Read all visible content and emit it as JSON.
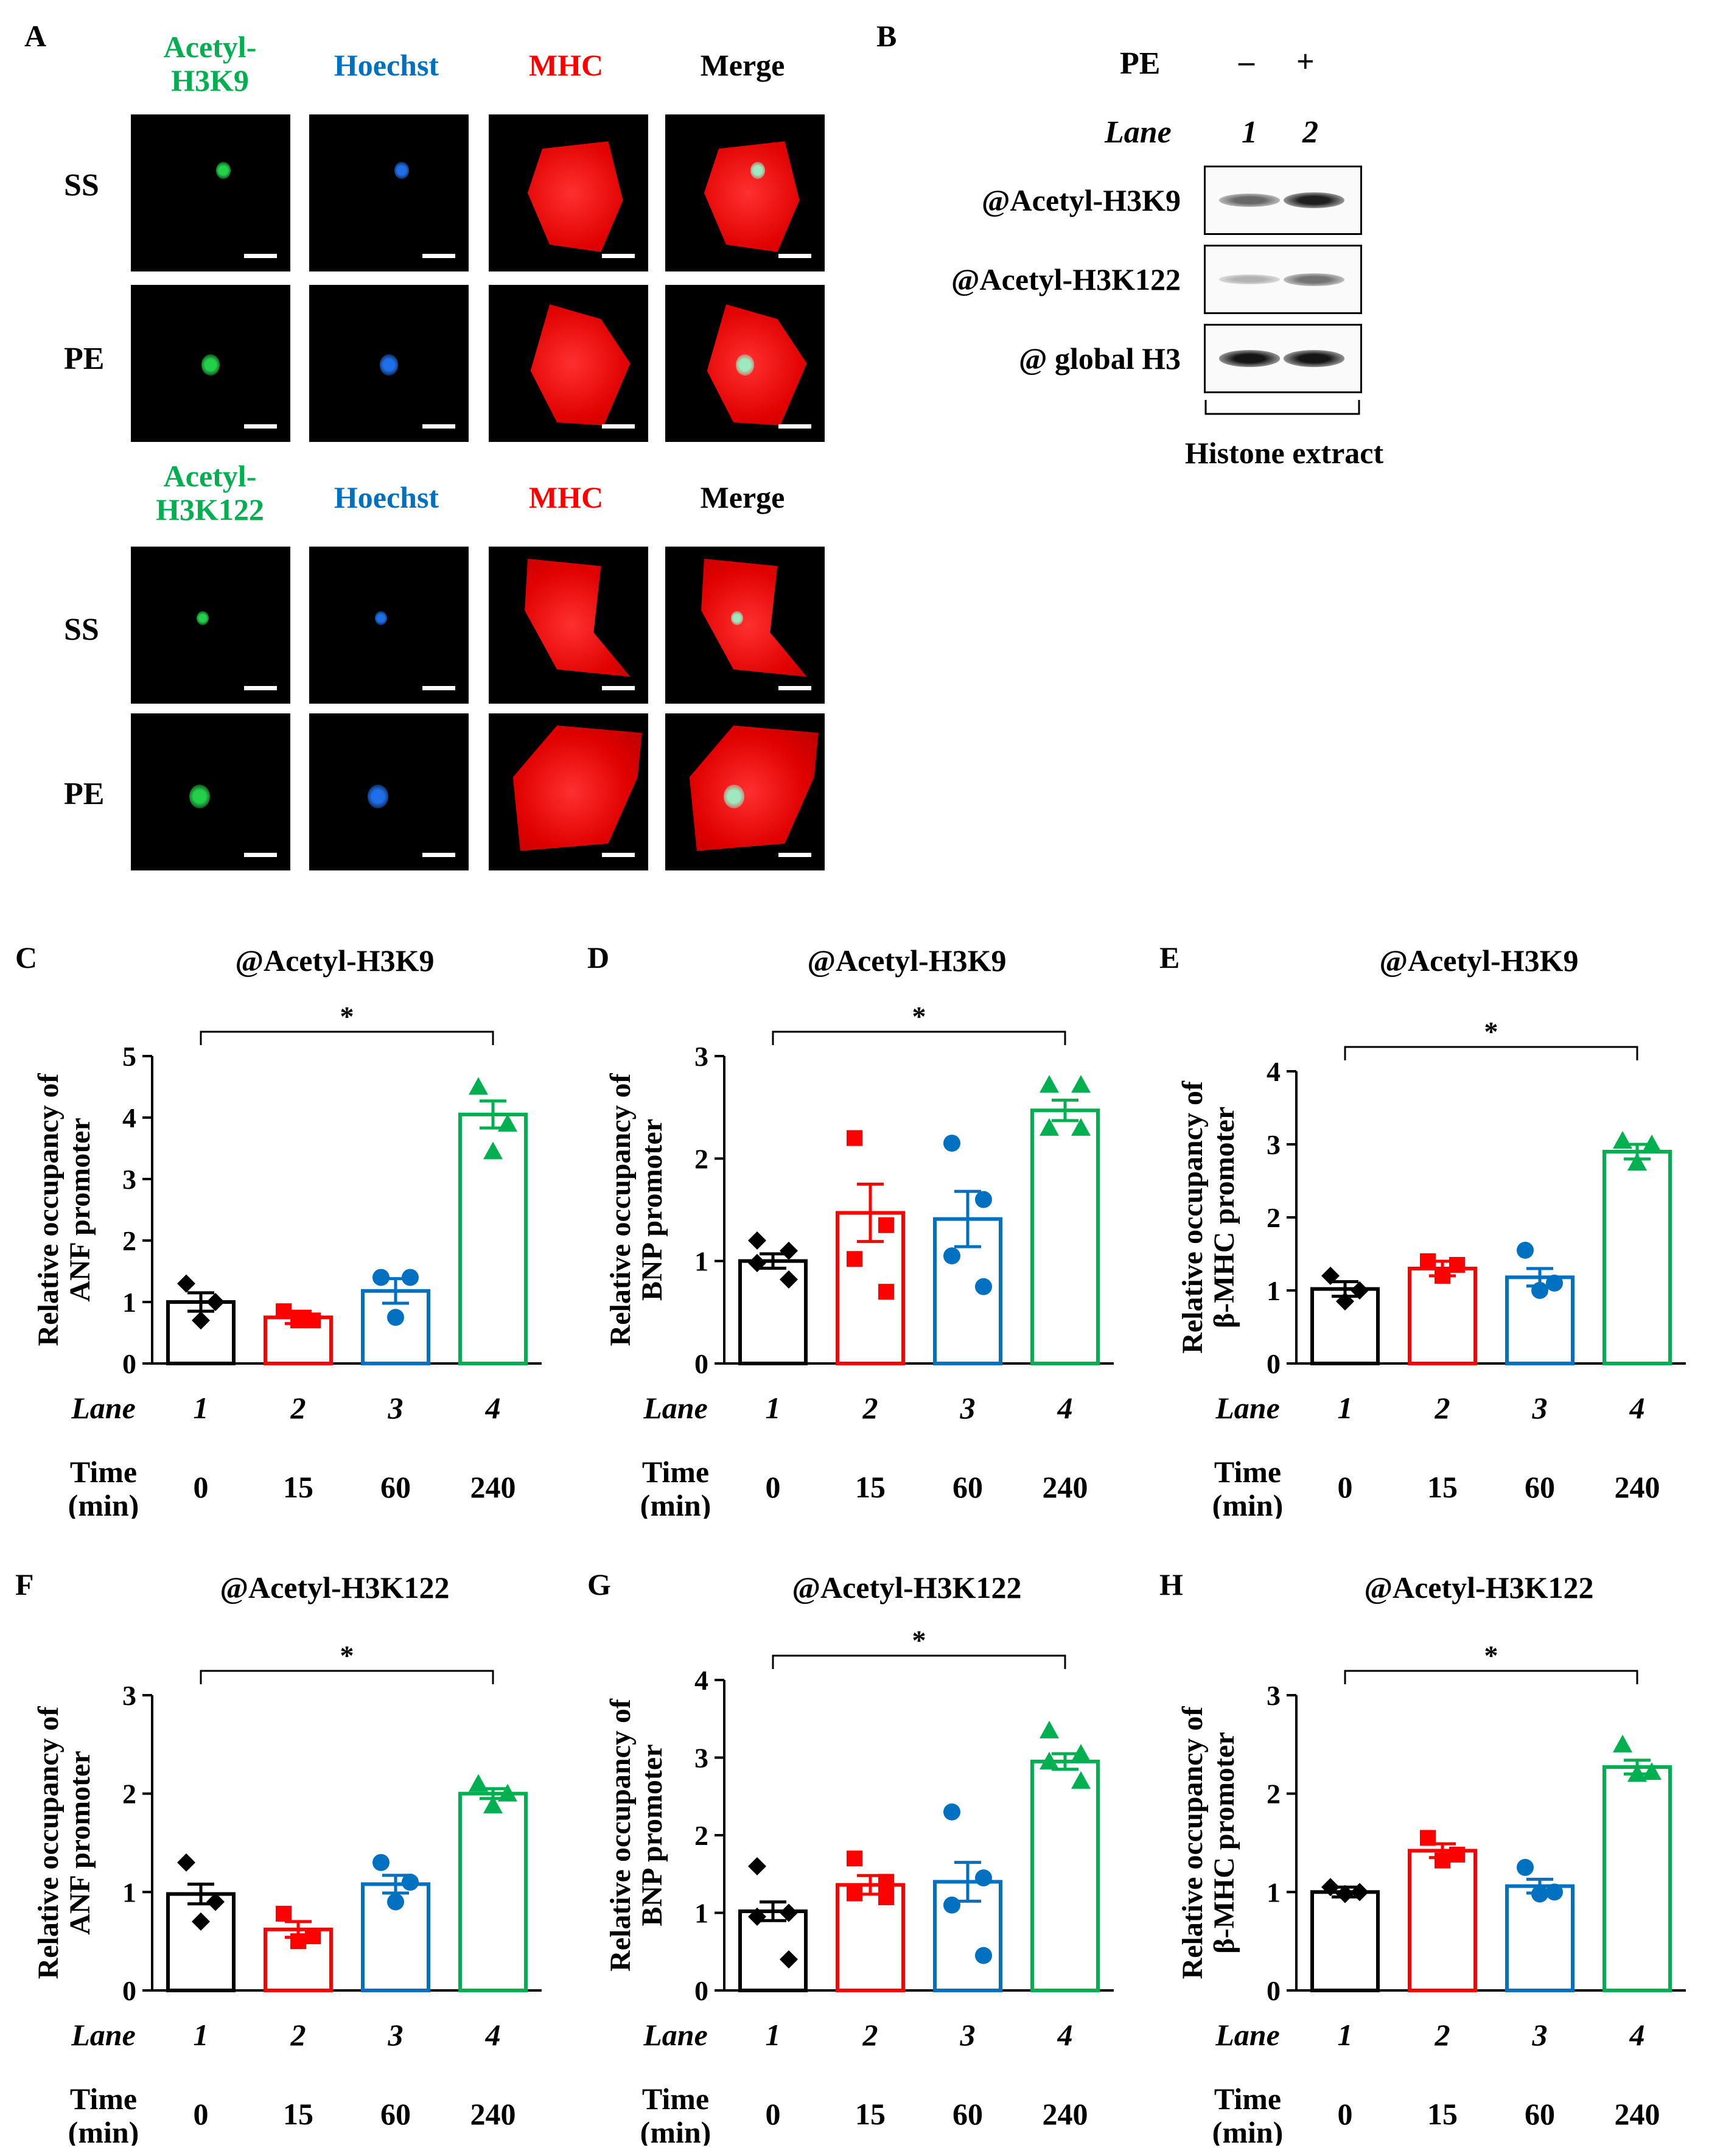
{
  "panel_a": {
    "letter": "A",
    "top_block": {
      "channels": [
        "Acetyl-\nH3K9",
        "Hoechst",
        "MHC",
        "Merge"
      ],
      "rows": [
        "SS",
        "PE"
      ]
    },
    "bottom_block": {
      "channels": [
        "Acetyl-\nH3K122",
        "Hoechst",
        "MHC",
        "Merge"
      ],
      "rows": [
        "SS",
        "PE"
      ]
    },
    "colors": {
      "acetyl": "#00b050",
      "hoechst": "#0070c0",
      "mhc": "#ff0000",
      "merge": "#000000"
    }
  },
  "panel_b": {
    "letter": "B",
    "treatment_label": "PE",
    "treatment_values": [
      "–",
      "+"
    ],
    "lane_label": "Lane",
    "lanes": [
      "1",
      "2"
    ],
    "antibodies": [
      "@Acetyl-H3K9",
      "@Acetyl-H3K122",
      "@ global H3"
    ],
    "band_intensity": [
      [
        0.55,
        0.9
      ],
      [
        0.2,
        0.5
      ],
      [
        0.95,
        0.95
      ]
    ],
    "footer": "Histone extract"
  },
  "chart_data": [
    {
      "panel": "C",
      "type": "bar",
      "title": "@Acetyl-H3K9",
      "ylabel": "Relative occupancy of\nANF promoter",
      "ylim": [
        0,
        5
      ],
      "yticks": [
        0,
        1,
        2,
        3,
        4,
        5
      ],
      "lane_label": "Lane",
      "lanes": [
        "1",
        "2",
        "3",
        "4"
      ],
      "time_label": "Time\n(min)",
      "times": [
        "0",
        "15",
        "60",
        "240"
      ],
      "values": [
        1.0,
        0.75,
        1.18,
        4.05
      ],
      "errors": [
        0.15,
        0.1,
        0.2,
        0.22
      ],
      "points": [
        [
          1.3,
          1.0,
          0.7
        ],
        [
          0.85,
          0.7,
          0.7
        ],
        [
          1.4,
          1.4,
          0.75
        ],
        [
          4.5,
          3.9,
          3.45
        ]
      ],
      "significance": {
        "from": 0,
        "to": 3,
        "label": "*"
      }
    },
    {
      "panel": "D",
      "type": "bar",
      "title": "@Acetyl-H3K9",
      "ylabel": "Relative occupancy of\nBNP promoter",
      "ylim": [
        0,
        3
      ],
      "yticks": [
        0,
        1,
        2,
        3
      ],
      "lane_label": "Lane",
      "lanes": [
        "1",
        "2",
        "3",
        "4"
      ],
      "time_label": "Time\n(min)",
      "times": [
        "0",
        "15",
        "60",
        "240"
      ],
      "values": [
        1.0,
        1.47,
        1.41,
        2.47
      ],
      "errors": [
        0.07,
        0.28,
        0.27,
        0.1
      ],
      "points": [
        [
          1.2,
          1.1,
          0.98,
          0.82
        ],
        [
          2.2,
          1.35,
          1.02,
          0.7
        ],
        [
          2.15,
          1.6,
          1.05,
          0.75
        ],
        [
          2.72,
          2.72,
          2.3,
          2.3
        ]
      ],
      "significance": {
        "from": 0,
        "to": 3,
        "label": "*"
      }
    },
    {
      "panel": "E",
      "type": "bar",
      "title": "@Acetyl-H3K9",
      "ylabel": "Relative occupancy of\nβ-MHC promoter",
      "ylim": [
        0,
        4
      ],
      "yticks": [
        0,
        1,
        2,
        3,
        4
      ],
      "lane_label": "Lane",
      "lanes": [
        "1",
        "2",
        "3",
        "4"
      ],
      "time_label": "Time\n(min)",
      "times": [
        "0",
        "15",
        "60",
        "240"
      ],
      "values": [
        1.02,
        1.3,
        1.18,
        2.9
      ],
      "errors": [
        0.1,
        0.1,
        0.12,
        0.1
      ],
      "points": [
        [
          1.2,
          1.0,
          0.85
        ],
        [
          1.4,
          1.35,
          1.2
        ],
        [
          1.55,
          1.1,
          1.0
        ],
        [
          3.05,
          3.0,
          2.75
        ]
      ],
      "significance": {
        "from": 0,
        "to": 3,
        "label": "*"
      }
    },
    {
      "panel": "F",
      "type": "bar",
      "title": "@Acetyl-H3K122",
      "ylabel": "Relative occupancy of\nANF promoter",
      "ylim": [
        0,
        3
      ],
      "yticks": [
        0,
        1,
        2,
        3
      ],
      "lane_label": "Lane",
      "lanes": [
        "1",
        "2",
        "3",
        "4"
      ],
      "time_label": "Time\n(min)",
      "times": [
        "0",
        "15",
        "60",
        "240"
      ],
      "values": [
        0.98,
        0.62,
        1.08,
        2.0
      ],
      "errors": [
        0.1,
        0.08,
        0.09,
        0.05
      ],
      "points": [
        [
          1.3,
          0.9,
          0.7
        ],
        [
          0.78,
          0.55,
          0.5
        ],
        [
          1.3,
          1.1,
          0.9
        ],
        [
          2.1,
          2.0,
          1.88
        ]
      ],
      "significance": {
        "from": 0,
        "to": 3,
        "label": "*"
      }
    },
    {
      "panel": "G",
      "type": "bar",
      "title": "@Acetyl-H3K122",
      "ylabel": "Relative occupancy of\nBNP promoter",
      "ylim": [
        0,
        4
      ],
      "yticks": [
        0,
        1,
        2,
        3,
        4
      ],
      "lane_label": "Lane",
      "lanes": [
        "1",
        "2",
        "3",
        "4"
      ],
      "time_label": "Time\n(min)",
      "times": [
        "0",
        "15",
        "60",
        "240"
      ],
      "values": [
        1.02,
        1.36,
        1.4,
        2.95
      ],
      "errors": [
        0.12,
        0.12,
        0.25,
        0.1
      ],
      "points": [
        [
          1.6,
          1.0,
          0.95,
          0.4
        ],
        [
          1.7,
          1.4,
          1.25,
          1.2
        ],
        [
          2.3,
          1.45,
          1.1,
          0.45
        ],
        [
          3.35,
          3.05,
          2.95,
          2.7
        ]
      ],
      "significance": {
        "from": 0,
        "to": 3,
        "label": "*"
      }
    },
    {
      "panel": "H",
      "type": "bar",
      "title": "@Acetyl-H3K122",
      "ylabel": "Relative occupancy of\nβ-MHC promoter",
      "ylim": [
        0,
        3
      ],
      "yticks": [
        0,
        1,
        2,
        3
      ],
      "lane_label": "Lane",
      "lanes": [
        "1",
        "2",
        "3",
        "4"
      ],
      "time_label": "Time\n(min)",
      "times": [
        "0",
        "15",
        "60",
        "240"
      ],
      "values": [
        1.0,
        1.42,
        1.06,
        2.27
      ],
      "errors": [
        0.05,
        0.07,
        0.07,
        0.07
      ],
      "points": [
        [
          1.05,
          1.0,
          0.98
        ],
        [
          1.55,
          1.38,
          1.32
        ],
        [
          1.25,
          1.0,
          0.98
        ],
        [
          2.5,
          2.22,
          2.2
        ]
      ],
      "significance": {
        "from": 0,
        "to": 3,
        "label": "*"
      }
    }
  ],
  "bar_colors": [
    "#000000",
    "#ff0000",
    "#0070c0",
    "#00b050"
  ],
  "point_shapes": [
    "diamond",
    "square",
    "circle",
    "triangle"
  ]
}
